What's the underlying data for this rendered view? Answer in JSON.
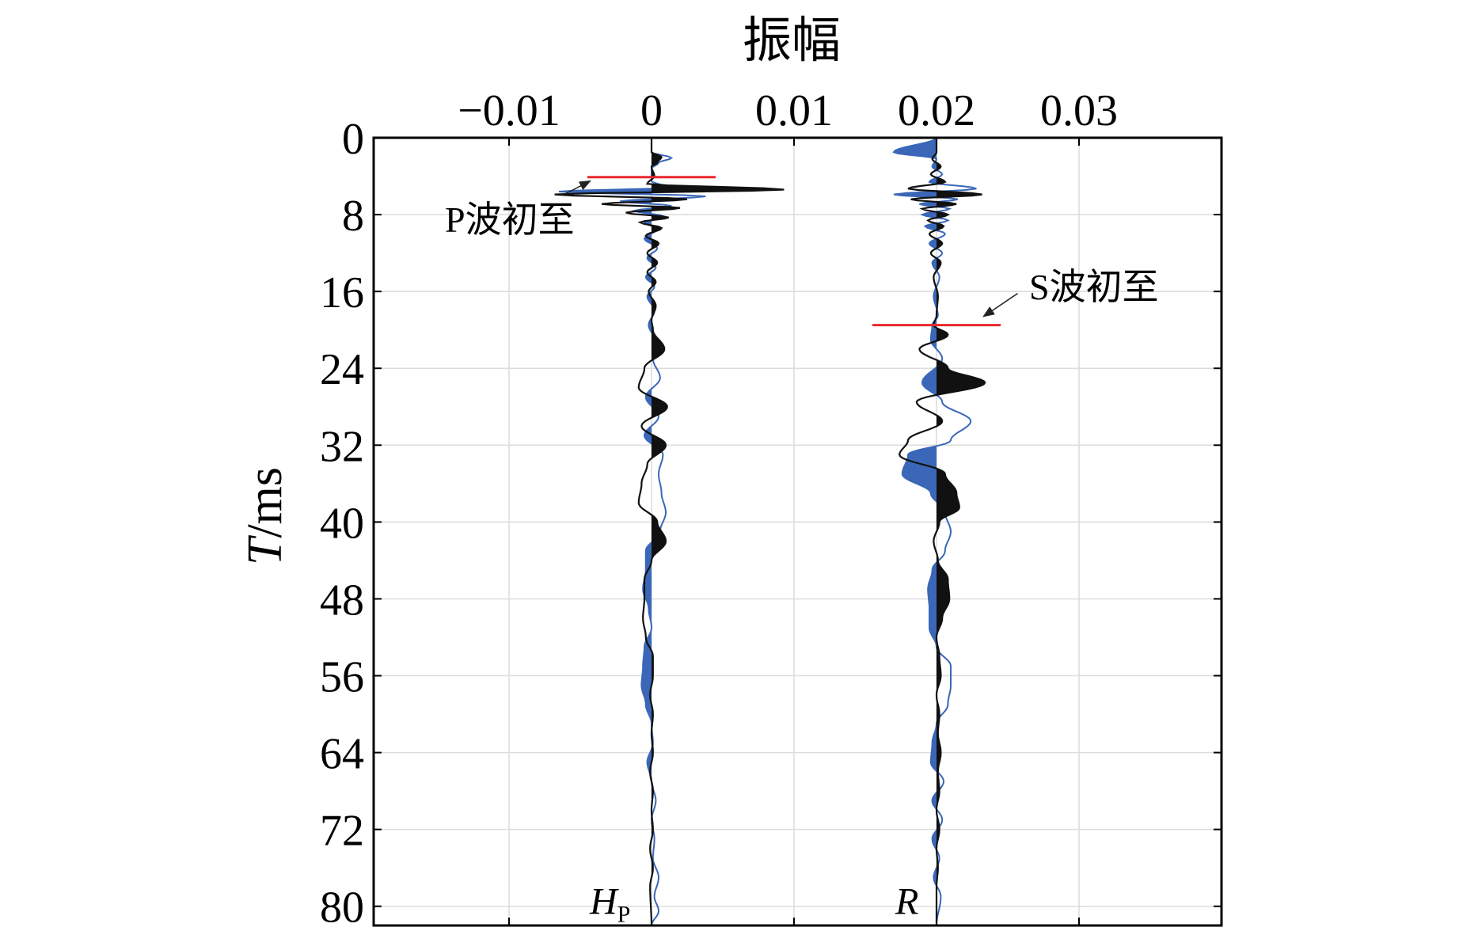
{
  "chart_data": {
    "type": "line",
    "title": "",
    "xlabel": "振幅",
    "ylabel": "T/ms",
    "ylabel_italic_part": "T",
    "ylabel_rest": "/ms",
    "xlim": [
      -0.0195,
      0.04
    ],
    "ylim": [
      0,
      82
    ],
    "x_ticks": [
      -0.01,
      0,
      0.01,
      0.02,
      0.03
    ],
    "x_tick_labels": [
      "−0.01",
      "0",
      "0.01",
      "0.02",
      "0.03"
    ],
    "y_ticks": [
      0,
      8,
      16,
      24,
      32,
      40,
      48,
      56,
      64,
      72,
      80
    ],
    "y_tick_labels": [
      "0",
      "8",
      "16",
      "24",
      "32",
      "40",
      "48",
      "56",
      "64",
      "72",
      "80"
    ],
    "grid": true,
    "colors": {
      "black_trace": "#111111",
      "blue_trace": "#3a67b8",
      "first_break": "#e8282e",
      "grid": "#dcdcdc",
      "frame": "#000000"
    },
    "traces": [
      {
        "name": "HP",
        "label_main": "H",
        "label_sub": "P",
        "baseline": 0,
        "label_time": 79.5,
        "black": [
          [
            0,
            0
          ],
          [
            1.5,
            0
          ],
          [
            2.0,
            0.0007
          ],
          [
            2.6,
            0.0004
          ],
          [
            3.0,
            0
          ],
          [
            4.0,
            0.0002
          ],
          [
            4.8,
            -0.0003
          ],
          [
            5.4,
            0.0093
          ],
          [
            5.9,
            -0.0068
          ],
          [
            6.4,
            0.0025
          ],
          [
            6.9,
            -0.0035
          ],
          [
            7.3,
            0.002
          ],
          [
            7.8,
            -0.0018
          ],
          [
            8.3,
            0.0012
          ],
          [
            8.8,
            -0.0008
          ],
          [
            9.4,
            0.0007
          ],
          [
            10.2,
            -0.0004
          ],
          [
            11.0,
            0.0005
          ],
          [
            12.0,
            -0.0003
          ],
          [
            13.0,
            0.0004
          ],
          [
            14.0,
            -0.0003
          ],
          [
            15.0,
            0.0003
          ],
          [
            16.0,
            -0.0002
          ],
          [
            17.5,
            0.0003
          ],
          [
            19.0,
            0
          ],
          [
            20.0,
            0.0001
          ],
          [
            22.0,
            0.0009
          ],
          [
            24.0,
            -0.0005
          ],
          [
            26.0,
            -0.0009
          ],
          [
            28.0,
            0.0011
          ],
          [
            30.0,
            -0.0007
          ],
          [
            32.0,
            0.001
          ],
          [
            34.0,
            -0.0003
          ],
          [
            36.0,
            -0.0007
          ],
          [
            38.0,
            -0.0009
          ],
          [
            40.0,
            0.0004
          ],
          [
            42.0,
            0.001
          ],
          [
            44.0,
            0
          ],
          [
            46.0,
            -0.0005
          ],
          [
            48.0,
            -0.0005
          ],
          [
            50.0,
            -0.0006
          ],
          [
            52.0,
            -0.0004
          ],
          [
            54.0,
            0.0001
          ],
          [
            56.0,
            0.0001
          ],
          [
            58.0,
            -0.0001
          ],
          [
            60.0,
            0.0001
          ],
          [
            62.0,
            0
          ],
          [
            64.0,
            0.0001
          ],
          [
            66.0,
            -0.0001
          ],
          [
            68.0,
            0.0001
          ],
          [
            70.0,
            0
          ],
          [
            72.0,
            0.0001
          ],
          [
            74.0,
            -0.0001
          ],
          [
            76.0,
            0.0001
          ],
          [
            78.0,
            -0.0001
          ],
          [
            82.0,
            0
          ]
        ],
        "blue": [
          [
            0,
            0
          ],
          [
            1.5,
            0
          ],
          [
            2.1,
            0.0014
          ],
          [
            2.6,
            0.0005
          ],
          [
            3.2,
            0
          ],
          [
            4.5,
            0
          ],
          [
            5.2,
            0.0012
          ],
          [
            5.6,
            -0.0065
          ],
          [
            6.1,
            0.0038
          ],
          [
            6.6,
            -0.0022
          ],
          [
            7.1,
            0.0014
          ],
          [
            7.6,
            -0.0012
          ],
          [
            8.2,
            0.0009
          ],
          [
            8.8,
            -0.0005
          ],
          [
            9.5,
            0.0004
          ],
          [
            10.5,
            -0.0005
          ],
          [
            11.5,
            0.0004
          ],
          [
            12.5,
            -0.0003
          ],
          [
            13.5,
            0.0003
          ],
          [
            14.5,
            -0.0004
          ],
          [
            15.5,
            0.0002
          ],
          [
            16.5,
            -0.0003
          ],
          [
            18.0,
            0.0002
          ],
          [
            19.5,
            -0.0002
          ],
          [
            21.0,
            0.0002
          ],
          [
            23.0,
            0.0001
          ],
          [
            25.0,
            0.0006
          ],
          [
            27.0,
            -0.0004
          ],
          [
            29.0,
            0.0005
          ],
          [
            31.0,
            -0.0005
          ],
          [
            33.0,
            0.0008
          ],
          [
            35.0,
            0.0005
          ],
          [
            37.0,
            0.0007
          ],
          [
            39.0,
            0.001
          ],
          [
            41.0,
            0.0006
          ],
          [
            43.0,
            -0.0004
          ],
          [
            45.0,
            -0.0004
          ],
          [
            47.0,
            -0.0006
          ],
          [
            49.0,
            -0.0002
          ],
          [
            51.0,
            0
          ],
          [
            53.0,
            -0.0005
          ],
          [
            55.0,
            -0.0006
          ],
          [
            57.0,
            -0.0007
          ],
          [
            59.0,
            -0.0004
          ],
          [
            61.0,
            0
          ],
          [
            63.0,
            0.0001
          ],
          [
            65.0,
            -0.0003
          ],
          [
            67.0,
            0
          ],
          [
            69.0,
            0.0003
          ],
          [
            71.0,
            0
          ],
          [
            73.0,
            0.0002
          ],
          [
            75.0,
            0.0001
          ],
          [
            77.0,
            0.0005
          ],
          [
            79.0,
            0.0002
          ],
          [
            80.5,
            0.0005
          ],
          [
            82.0,
            0
          ]
        ]
      },
      {
        "name": "R",
        "label_main": "R",
        "label_sub": "",
        "baseline": 0.02,
        "label_time": 79.5,
        "black": [
          [
            0,
            0
          ],
          [
            1.5,
            0
          ],
          [
            2.2,
            -0.0003
          ],
          [
            3.0,
            0.0003
          ],
          [
            3.8,
            -0.0004
          ],
          [
            4.6,
            0.0006
          ],
          [
            5.3,
            -0.002
          ],
          [
            5.9,
            0.0032
          ],
          [
            6.4,
            -0.0018
          ],
          [
            6.9,
            0.0014
          ],
          [
            7.4,
            -0.001
          ],
          [
            8.0,
            0.0008
          ],
          [
            8.6,
            -0.0006
          ],
          [
            9.2,
            0.0005
          ],
          [
            10.0,
            -0.0005
          ],
          [
            11.0,
            0.0004
          ],
          [
            12.0,
            -0.0004
          ],
          [
            13.0,
            0.0003
          ],
          [
            14.5,
            -0.0002
          ],
          [
            16.5,
            0.0001
          ],
          [
            18.5,
            0
          ],
          [
            19.5,
            -0.0002
          ],
          [
            20.5,
            0.0008
          ],
          [
            22.0,
            -0.0012
          ],
          [
            24.0,
            0.0008
          ],
          [
            25.5,
            0.0034
          ],
          [
            27.5,
            -0.0014
          ],
          [
            29.5,
            0.0004
          ],
          [
            31.5,
            -0.002
          ],
          [
            33.0,
            -0.0026
          ],
          [
            35.0,
            0.0006
          ],
          [
            37.0,
            0.0014
          ],
          [
            38.5,
            0.0016
          ],
          [
            40.0,
            0.0002
          ],
          [
            42.0,
            -0.0002
          ],
          [
            44.0,
            0.0001
          ],
          [
            46.0,
            0.0008
          ],
          [
            48.0,
            0.0009
          ],
          [
            50.0,
            0.0004
          ],
          [
            52.0,
            0
          ],
          [
            54.0,
            0.0002
          ],
          [
            56.0,
            0.0003
          ],
          [
            58.0,
            0
          ],
          [
            60.0,
            0.0002
          ],
          [
            62.0,
            0.0001
          ],
          [
            64.0,
            0.0003
          ],
          [
            66.0,
            0.0001
          ],
          [
            68.0,
            0.0002
          ],
          [
            70.0,
            0
          ],
          [
            72.0,
            0.0002
          ],
          [
            74.0,
            0
          ],
          [
            76.0,
            0.0001
          ],
          [
            78.0,
            0
          ],
          [
            82.0,
            0
          ]
        ],
        "blue": [
          [
            0,
            0
          ],
          [
            1.5,
            -0.003
          ],
          [
            2.2,
            0
          ],
          [
            3.0,
            -0.0003
          ],
          [
            3.8,
            0.0004
          ],
          [
            4.6,
            -0.0005
          ],
          [
            5.3,
            0.0028
          ],
          [
            5.9,
            -0.003
          ],
          [
            6.4,
            0.0015
          ],
          [
            6.9,
            -0.0012
          ],
          [
            7.4,
            0.0009
          ],
          [
            8.0,
            -0.001
          ],
          [
            8.6,
            0.0008
          ],
          [
            9.2,
            -0.0008
          ],
          [
            10.0,
            0.0006
          ],
          [
            11.0,
            -0.0005
          ],
          [
            12.0,
            0.0004
          ],
          [
            13.0,
            -0.0003
          ],
          [
            14.5,
            0.0002
          ],
          [
            16.5,
            -0.0002
          ],
          [
            18.5,
            0.0001
          ],
          [
            19.5,
            -0.0003
          ],
          [
            21.0,
            -0.0004
          ],
          [
            23.0,
            0.0004
          ],
          [
            25.5,
            -0.001
          ],
          [
            27.5,
            0.0004
          ],
          [
            29.5,
            0.0024
          ],
          [
            31.5,
            0.001
          ],
          [
            33.0,
            -0.002
          ],
          [
            35.0,
            -0.0024
          ],
          [
            37.0,
            -0.0004
          ],
          [
            39.0,
            0.0006
          ],
          [
            41.0,
            0.001
          ],
          [
            43.0,
            0.0006
          ],
          [
            45.0,
            -0.0003
          ],
          [
            47.0,
            -0.0006
          ],
          [
            49.0,
            -0.0005
          ],
          [
            51.0,
            -0.0005
          ],
          [
            53.0,
            0
          ],
          [
            55.0,
            0.001
          ],
          [
            57.0,
            0.001
          ],
          [
            59.0,
            0.0008
          ],
          [
            61.0,
            0
          ],
          [
            63.0,
            -0.0003
          ],
          [
            65.0,
            -0.0004
          ],
          [
            67.0,
            0.0005
          ],
          [
            69.0,
            -0.0003
          ],
          [
            71.0,
            0.0004
          ],
          [
            73.0,
            -0.0003
          ],
          [
            75.0,
            0.0002
          ],
          [
            77.0,
            -0.0002
          ],
          [
            79.0,
            0.0003
          ],
          [
            82.0,
            0
          ]
        ]
      }
    ],
    "annotations": [
      {
        "text": "P波初至",
        "time": 4.1,
        "x_start": -0.0045,
        "x_end": 0.0045,
        "text_x": -0.0145,
        "text_time": 8.5,
        "arrow_from": [
          -0.006,
          5.8
        ],
        "arrow_to": [
          -0.0043,
          4.5
        ]
      },
      {
        "text": "S波初至",
        "time": 19.5,
        "x_start": 0.0155,
        "x_end": 0.0245,
        "text_x": 0.0265,
        "text_time": 15.5,
        "arrow_from": [
          0.0257,
          16.2
        ],
        "arrow_to": [
          0.0233,
          18.6
        ]
      }
    ]
  }
}
